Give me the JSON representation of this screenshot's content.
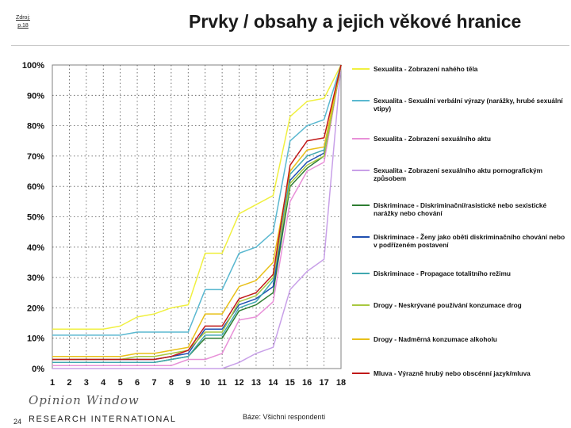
{
  "header": {
    "source_line1": "Zdroj:",
    "source_line2": "p.18",
    "title": "Prvky / obsahy a jejich věkové hranice"
  },
  "footer": {
    "page_number": "24",
    "logo_top": "Opinion Window",
    "logo_bottom": "RESEARCH INTERNATIONAL",
    "note": "Báze: Všichni respondenti"
  },
  "chart_data": {
    "type": "line",
    "x": [
      1,
      2,
      3,
      4,
      5,
      6,
      7,
      8,
      9,
      10,
      11,
      12,
      13,
      14,
      15,
      16,
      17,
      18
    ],
    "x_tick_labels": [
      "1",
      "2",
      "3",
      "4",
      "5",
      "6",
      "7",
      "8",
      "9",
      "10",
      "11",
      "12",
      "13",
      "14",
      "15",
      "16",
      "17",
      "18"
    ],
    "y_tick_labels": [
      "0%",
      "10%",
      "20%",
      "30%",
      "40%",
      "50%",
      "60%",
      "70%",
      "80%",
      "90%",
      "100%"
    ],
    "ylim": [
      0,
      100
    ],
    "xlabel": "",
    "ylabel": "",
    "grid": "dotted",
    "legend_position": "right",
    "series": [
      {
        "name": "Sexualita - Zobrazení nahého těla",
        "color": "#f0f040",
        "values": [
          13,
          13,
          13,
          13,
          14,
          17,
          18,
          20,
          21,
          38,
          38,
          51,
          54,
          57,
          83,
          88,
          89,
          100
        ]
      },
      {
        "name": "Sexualita - Sexuální verbální výrazy (narážky, hrubé sexuální vtipy)",
        "color": "#5ab8d0",
        "values": [
          11,
          11,
          11,
          11,
          11,
          12,
          12,
          12,
          12,
          26,
          26,
          38,
          40,
          45,
          75,
          80,
          82,
          100
        ]
      },
      {
        "name": "Sexualita - Zobrazení sexuálního aktu",
        "color": "#e890d8",
        "values": [
          1,
          1,
          1,
          1,
          1,
          1,
          1,
          1,
          3,
          3,
          5,
          16,
          17,
          22,
          55,
          65,
          68,
          100
        ]
      },
      {
        "name": "Sexualita - Zobrazení sexuálního aktu pornografickým způsobem",
        "color": "#c8a0e8",
        "values": [
          0,
          0,
          0,
          0,
          0,
          0,
          0,
          0,
          0,
          0,
          0,
          2,
          5,
          7,
          26,
          32,
          36,
          100
        ]
      },
      {
        "name": "Diskriminace - Diskriminační/rasistické nebo sexistické narážky nebo chování",
        "color": "#2e7d32",
        "values": [
          2,
          2,
          2,
          2,
          2,
          2,
          2,
          3,
          4,
          10,
          10,
          19,
          21,
          25,
          60,
          66,
          70,
          100
        ]
      },
      {
        "name": "Diskriminace - Ženy jako oběti diskriminačního chování nebo v podřízeném postavení",
        "color": "#1f4fb0",
        "values": [
          3,
          3,
          3,
          3,
          3,
          3,
          3,
          4,
          5,
          13,
          13,
          21,
          23,
          27,
          62,
          68,
          71,
          100
        ]
      },
      {
        "name": "Diskriminace - Propagace totalitního režimu",
        "color": "#40a8b0",
        "values": [
          2,
          2,
          2,
          2,
          2,
          2,
          2,
          3,
          4,
          11,
          11,
          20,
          22,
          29,
          64,
          70,
          72,
          100
        ]
      },
      {
        "name": "Drogy - Neskrývané používání konzumace drog",
        "color": "#a8c840",
        "values": [
          3,
          3,
          3,
          3,
          3,
          4,
          4,
          5,
          6,
          12,
          12,
          22,
          24,
          30,
          61,
          67,
          70,
          100
        ]
      },
      {
        "name": "Drogy - Nadměrná konzumace alkoholu",
        "color": "#e8c018",
        "values": [
          4,
          4,
          4,
          4,
          4,
          5,
          5,
          6,
          7,
          18,
          18,
          27,
          29,
          35,
          65,
          72,
          73,
          100
        ]
      },
      {
        "name": "Mluva - Výrazně hrubý nebo obscénní jazyk/mluva",
        "color": "#c01818",
        "values": [
          3,
          3,
          3,
          3,
          3,
          3,
          3,
          4,
          6,
          14,
          14,
          23,
          25,
          31,
          67,
          75,
          76,
          100
        ]
      }
    ]
  }
}
